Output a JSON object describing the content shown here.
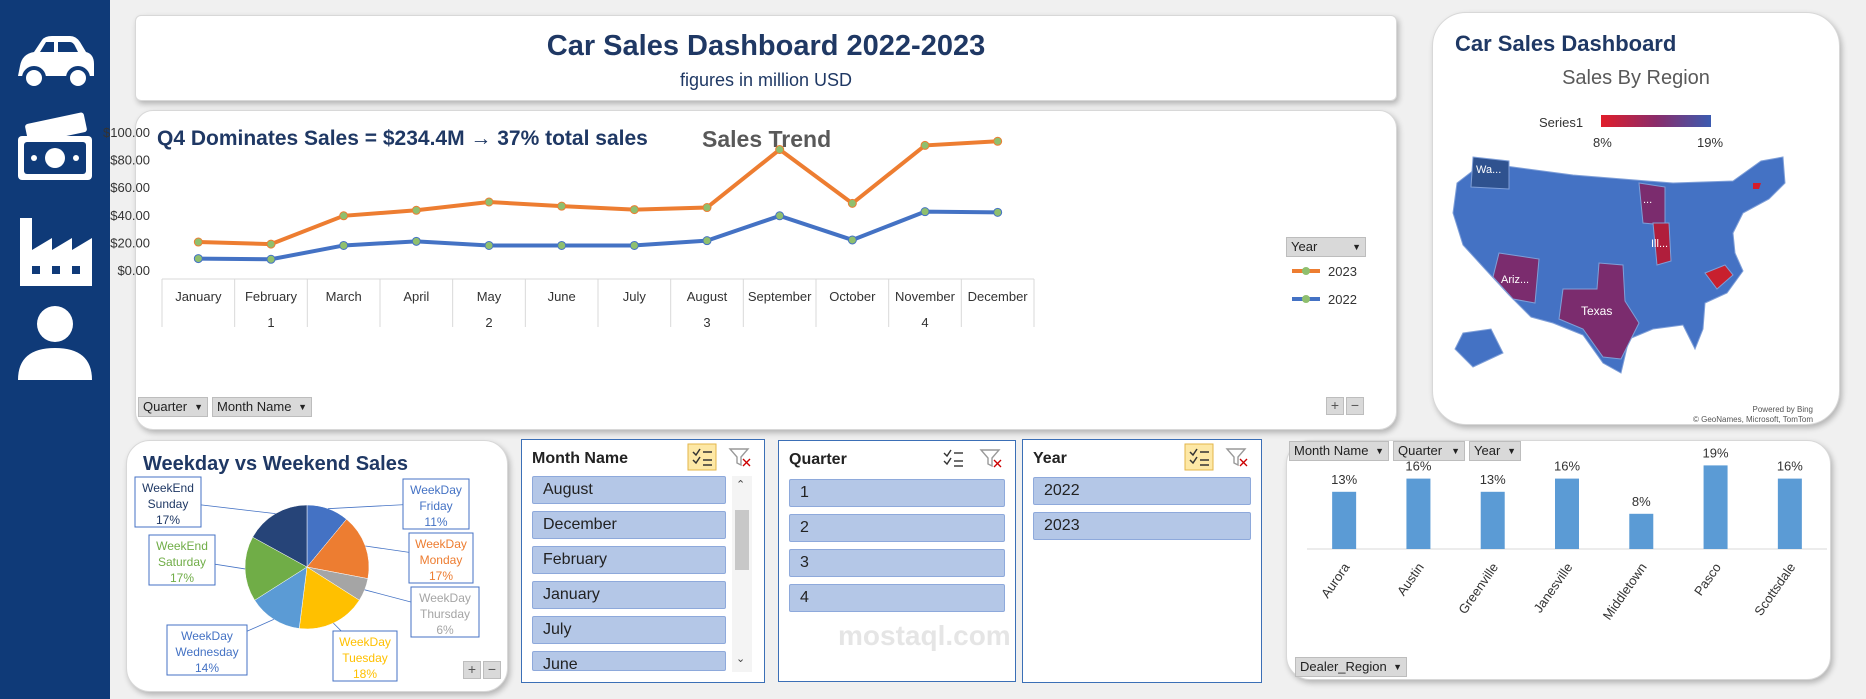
{
  "sidebar": {
    "icons": [
      "car-icon",
      "money-icon",
      "factory-icon",
      "user-icon"
    ]
  },
  "header": {
    "title": "Car Sales Dashboard 2022-2023",
    "subtitle": "figures in million USD"
  },
  "trend": {
    "insight": "Q4 Dominates Sales = $234.4M → 37% total sales",
    "chart_title": "Sales Trend",
    "legend_label": "Year",
    "filters": [
      "Quarter",
      "Month Name"
    ]
  },
  "map": {
    "title": "Car Sales Dashboard",
    "subtitle": "Sales By Region",
    "legend_series": "Series1",
    "legend_min": "8%",
    "legend_max": "19%",
    "credits_1": "Powered by Bing",
    "credits_2": "© GeoNames, Microsoft, TomTom",
    "state_labels": [
      "Wa...",
      "...",
      "Ill...",
      "Ariz...",
      "Texas"
    ]
  },
  "pie": {
    "title": "Weekday vs Weekend Sales"
  },
  "slicers": {
    "month": {
      "title": "Month Name",
      "items": [
        "August",
        "December",
        "February",
        "January",
        "July",
        "June"
      ]
    },
    "quarter": {
      "title": "Quarter",
      "items": [
        "1",
        "2",
        "3",
        "4"
      ]
    },
    "year": {
      "title": "Year",
      "items": [
        "2022",
        "2023"
      ]
    }
  },
  "bars": {
    "filters": [
      "Month Name",
      "Quarter",
      "Year"
    ],
    "axis_filter": "Dealer_Region"
  },
  "watermark": {
    "text": "mostaql.com"
  },
  "colors": {
    "navy": "#0f3a78",
    "series_2023": "#ed7d31",
    "series_2022": "#4472c4",
    "bar": "#5b9bd5"
  },
  "chart_data": [
    {
      "type": "line",
      "title": "Sales Trend",
      "categories": [
        "January",
        "February",
        "March",
        "April",
        "May",
        "June",
        "July",
        "August",
        "September",
        "October",
        "November",
        "December"
      ],
      "quarters": [
        "1",
        "2",
        "3",
        "4"
      ],
      "ylim": [
        0,
        100
      ],
      "yticks": [
        "$0.00",
        "$20.00",
        "$40.00",
        "$60.00",
        "$80.00",
        "$100.00"
      ],
      "series": [
        {
          "name": "2023",
          "color": "#ed7d31",
          "values": [
            21,
            19.5,
            40,
            44,
            50,
            47,
            44.5,
            46,
            88,
            49,
            91,
            94
          ]
        },
        {
          "name": "2022",
          "color": "#4472c4",
          "values": [
            9,
            8.5,
            18.5,
            21.5,
            18.5,
            18.5,
            18.5,
            22,
            40,
            22.5,
            43,
            42.5
          ]
        }
      ]
    },
    {
      "type": "pie",
      "title": "Weekday vs Weekend Sales",
      "slices": [
        {
          "label": "WeekDay Friday",
          "line1": "WeekDay",
          "line2": "Friday",
          "pct": "11%",
          "value": 11,
          "color": "#4472c4"
        },
        {
          "label": "WeekDay Monday",
          "line1": "WeekDay",
          "line2": "Monday",
          "pct": "17%",
          "value": 17,
          "color": "#ed7d31"
        },
        {
          "label": "WeekDay Thursday",
          "line1": "WeekDay",
          "line2": "Thursday",
          "pct": "6%",
          "value": 6,
          "color": "#a5a5a5"
        },
        {
          "label": "WeekDay Tuesday",
          "line1": "WeekDay",
          "line2": "Tuesday",
          "pct": "18%",
          "value": 18,
          "color": "#ffc000"
        },
        {
          "label": "WeekDay Wednesday",
          "line1": "WeekDay",
          "line2": "Wednesday",
          "pct": "14%",
          "value": 14,
          "color": "#5b9bd5"
        },
        {
          "label": "WeekEnd Saturday",
          "line1": "WeekEnd",
          "line2": "Saturday",
          "pct": "17%",
          "value": 17,
          "color": "#70ad47"
        },
        {
          "label": "WeekEnd Sunday",
          "line1": "WeekEnd",
          "line2": "Sunday",
          "pct": "17%",
          "value": 17,
          "color": "#264478"
        }
      ]
    },
    {
      "type": "bar",
      "categories": [
        "Aurora",
        "Austin",
        "Greenville",
        "Janesville",
        "Middletown",
        "Pasco",
        "Scottsdale"
      ],
      "values": [
        13,
        16,
        13,
        16,
        8,
        19,
        16
      ],
      "labels": [
        "13%",
        "16%",
        "13%",
        "16%",
        "8%",
        "19%",
        "16%"
      ],
      "ylim": [
        0,
        20
      ]
    }
  ]
}
